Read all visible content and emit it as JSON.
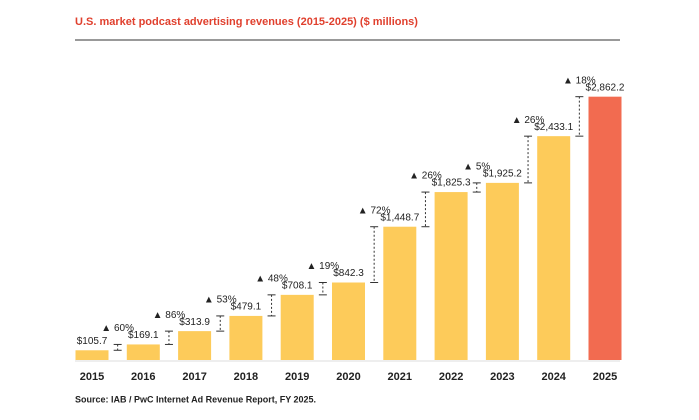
{
  "chart_data": {
    "type": "bar",
    "title": "U.S. market podcast advertising revenues (2015-2025) ($ millions)",
    "source": "Source: IAB / PwC Internet Ad Revenue Report, FY 2025.",
    "categories": [
      "2015",
      "2016",
      "2017",
      "2018",
      "2019",
      "2020",
      "2021",
      "2022",
      "2023",
      "2024",
      "2025"
    ],
    "values": [
      105.7,
      169.1,
      313.9,
      479.1,
      708.1,
      842.3,
      1448.7,
      1825.3,
      1925.2,
      2433.1,
      2862.2
    ],
    "value_labels": [
      "$105.7",
      "$169.1",
      "$313.9",
      "$479.1",
      "$708.1",
      "$842.3",
      "$1,448.7",
      "$1,825.3",
      "$1,925.2",
      "$2,433.1",
      "$2,862.2"
    ],
    "colors": [
      "#fdcb5a",
      "#fdcb5a",
      "#fdcb5a",
      "#fdcb5a",
      "#fdcb5a",
      "#fdcb5a",
      "#fdcb5a",
      "#fdcb5a",
      "#fdcb5a",
      "#fdcb5a",
      "#f26b50"
    ],
    "growth": [
      60,
      86,
      53,
      48,
      19,
      72,
      26,
      5,
      26,
      18
    ],
    "growth_labels": [
      "▲ 60%",
      "▲ 86%",
      "▲ 53%",
      "▲ 48%",
      "▲ 19%",
      "▲ 72%",
      "▲ 26%",
      "▲ 5%",
      "▲ 26%",
      "▲ 18%"
    ]
  }
}
